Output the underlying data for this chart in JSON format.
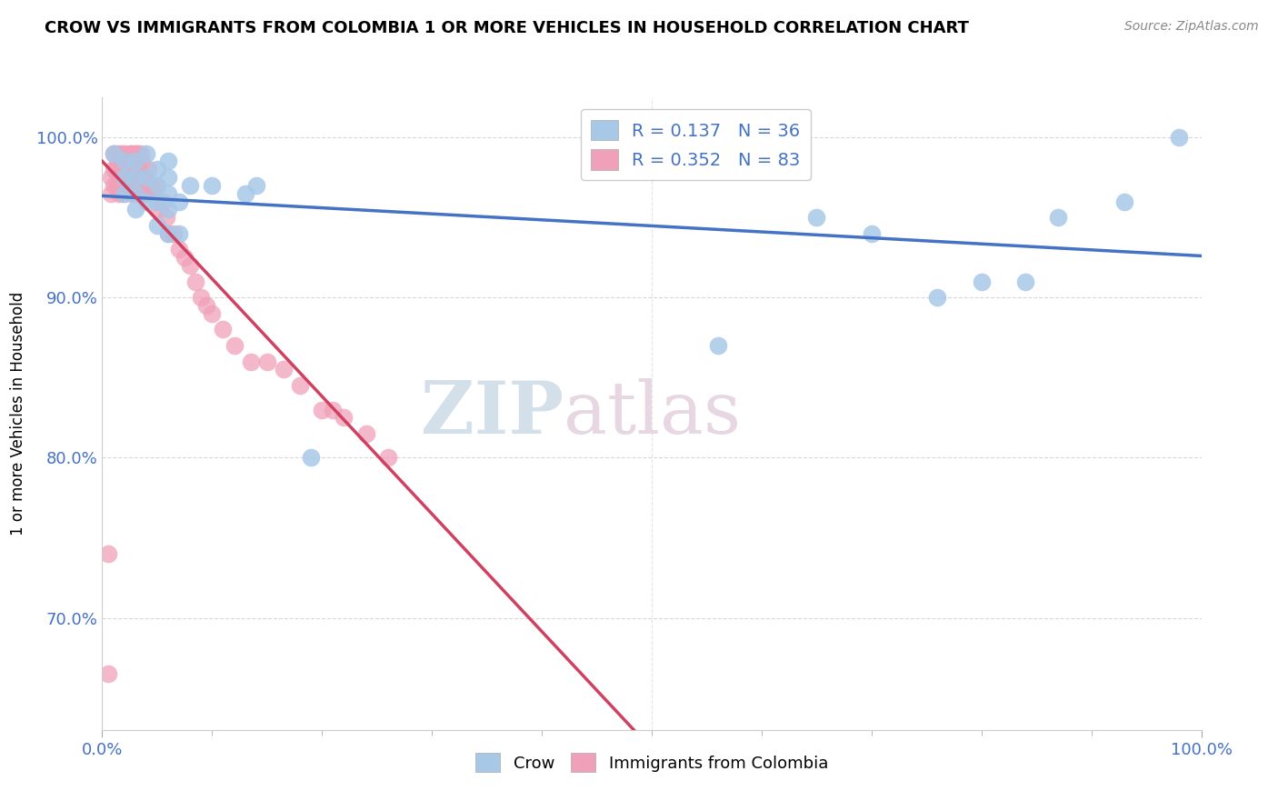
{
  "title": "CROW VS IMMIGRANTS FROM COLOMBIA 1 OR MORE VEHICLES IN HOUSEHOLD CORRELATION CHART",
  "source": "Source: ZipAtlas.com",
  "ylabel": "1 or more Vehicles in Household",
  "xlim": [
    0.0,
    1.0
  ],
  "ylim": [
    0.63,
    1.025
  ],
  "yticks": [
    0.7,
    0.8,
    0.9,
    1.0
  ],
  "ytick_labels": [
    "70.0%",
    "80.0%",
    "90.0%",
    "100.0%"
  ],
  "legend_labels": [
    "Crow",
    "Immigrants from Colombia"
  ],
  "blue_R": "0.137",
  "blue_N": "36",
  "pink_R": "0.352",
  "pink_N": "83",
  "blue_color": "#a8c8e8",
  "pink_color": "#f0a0b8",
  "blue_line_color": "#4472c4",
  "pink_line_color": "#d04060",
  "watermark_zip": "ZIP",
  "watermark_atlas": "atlas",
  "blue_scatter_x": [
    0.01,
    0.02,
    0.02,
    0.02,
    0.03,
    0.03,
    0.03,
    0.03,
    0.04,
    0.04,
    0.04,
    0.05,
    0.05,
    0.05,
    0.05,
    0.06,
    0.06,
    0.06,
    0.06,
    0.06,
    0.07,
    0.07,
    0.08,
    0.1,
    0.13,
    0.14,
    0.19,
    0.56,
    0.65,
    0.7,
    0.76,
    0.8,
    0.84,
    0.87,
    0.93,
    0.98
  ],
  "blue_scatter_y": [
    0.99,
    0.985,
    0.975,
    0.965,
    0.985,
    0.975,
    0.965,
    0.955,
    0.99,
    0.975,
    0.96,
    0.98,
    0.97,
    0.96,
    0.945,
    0.985,
    0.975,
    0.965,
    0.955,
    0.94,
    0.96,
    0.94,
    0.97,
    0.97,
    0.965,
    0.97,
    0.8,
    0.87,
    0.95,
    0.94,
    0.9,
    0.91,
    0.91,
    0.95,
    0.96,
    1.0
  ],
  "pink_scatter_x": [
    0.005,
    0.008,
    0.008,
    0.01,
    0.01,
    0.01,
    0.012,
    0.013,
    0.014,
    0.014,
    0.015,
    0.015,
    0.015,
    0.016,
    0.017,
    0.018,
    0.018,
    0.019,
    0.02,
    0.02,
    0.02,
    0.021,
    0.022,
    0.022,
    0.023,
    0.024,
    0.025,
    0.025,
    0.025,
    0.026,
    0.026,
    0.027,
    0.027,
    0.027,
    0.028,
    0.028,
    0.028,
    0.029,
    0.03,
    0.03,
    0.03,
    0.03,
    0.031,
    0.032,
    0.033,
    0.033,
    0.035,
    0.035,
    0.036,
    0.037,
    0.038,
    0.038,
    0.04,
    0.04,
    0.042,
    0.043,
    0.045,
    0.048,
    0.05,
    0.052,
    0.055,
    0.058,
    0.06,
    0.065,
    0.07,
    0.075,
    0.08,
    0.085,
    0.09,
    0.095,
    0.1,
    0.11,
    0.12,
    0.135,
    0.15,
    0.165,
    0.18,
    0.2,
    0.21,
    0.22,
    0.24,
    0.26,
    0.005
  ],
  "pink_scatter_y": [
    0.665,
    0.975,
    0.965,
    0.99,
    0.98,
    0.97,
    0.99,
    0.98,
    0.985,
    0.97,
    0.99,
    0.975,
    0.965,
    0.985,
    0.975,
    0.99,
    0.975,
    0.965,
    0.99,
    0.98,
    0.97,
    0.985,
    0.985,
    0.975,
    0.985,
    0.975,
    0.99,
    0.985,
    0.975,
    0.99,
    0.98,
    0.985,
    0.975,
    0.965,
    0.99,
    0.98,
    0.97,
    0.985,
    0.99,
    0.985,
    0.975,
    0.965,
    0.99,
    0.985,
    0.99,
    0.98,
    0.99,
    0.975,
    0.985,
    0.975,
    0.975,
    0.965,
    0.975,
    0.965,
    0.98,
    0.965,
    0.97,
    0.97,
    0.96,
    0.955,
    0.96,
    0.95,
    0.94,
    0.94,
    0.93,
    0.925,
    0.92,
    0.91,
    0.9,
    0.895,
    0.89,
    0.88,
    0.87,
    0.86,
    0.86,
    0.855,
    0.845,
    0.83,
    0.83,
    0.825,
    0.815,
    0.8,
    0.74
  ]
}
